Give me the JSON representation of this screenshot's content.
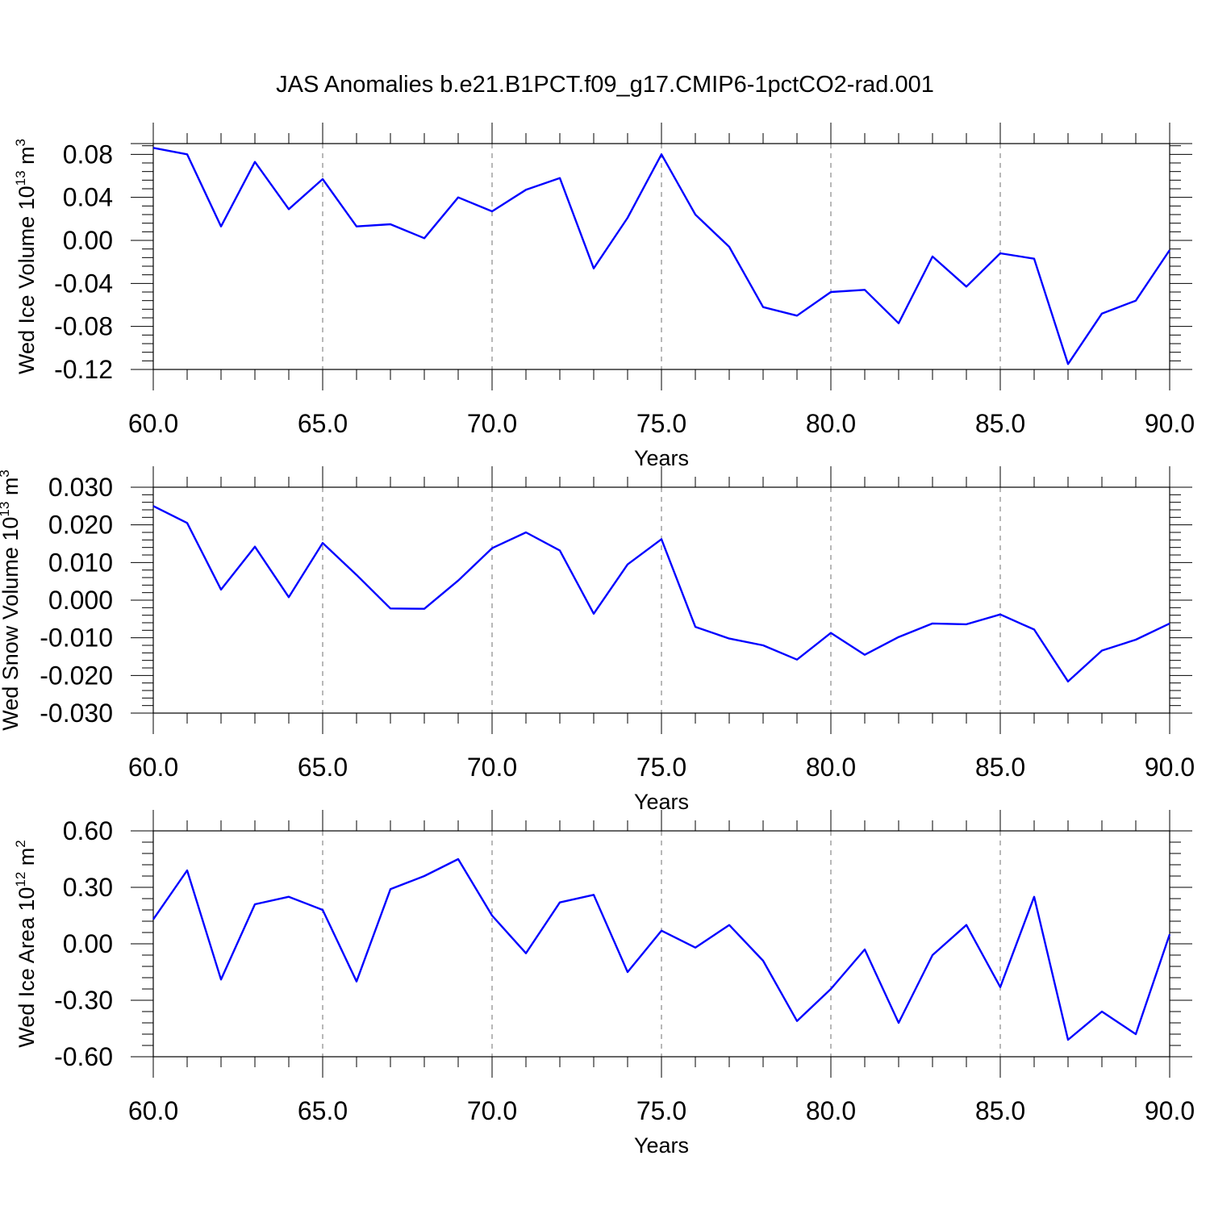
{
  "title": "JAS Anomalies b.e21.B1PCT.f09_g17.CMIP6-1pctCO2-rad.001",
  "colors": {
    "line": "#0000ff",
    "axis": "#000000",
    "grid": "#888888"
  },
  "chart_data": [
    {
      "type": "line",
      "ylabel": {
        "prefix": "Wed Ice Volume 10",
        "exp": "13",
        "unit": " m",
        "unit_exp": "3"
      },
      "xlabel": "Years",
      "xlim": [
        60,
        90
      ],
      "ylim": [
        -0.12,
        0.09
      ],
      "x_ticks": [
        "60.0",
        "65.0",
        "70.0",
        "75.0",
        "80.0",
        "85.0",
        "90.0"
      ],
      "y_ticks": [
        "0.08",
        "0.04",
        "0.00",
        "-0.04",
        "-0.08",
        "-0.12"
      ],
      "y_tick_values": [
        0.08,
        0.04,
        0.0,
        -0.04,
        -0.08,
        -0.12
      ],
      "grid": "vertical dashed at major x ticks",
      "series": [
        {
          "x": [
            60,
            61,
            62,
            63,
            64,
            65,
            66,
            67,
            68,
            69,
            70,
            71,
            72,
            73,
            74,
            75,
            76,
            77,
            78,
            79,
            80,
            81,
            82,
            83,
            84,
            85,
            86,
            87,
            88,
            89,
            90
          ],
          "values": [
            0.086,
            0.08,
            0.013,
            0.073,
            0.029,
            0.057,
            0.013,
            0.015,
            0.002,
            0.04,
            0.027,
            0.047,
            0.058,
            -0.026,
            0.021,
            0.08,
            0.024,
            -0.006,
            -0.062,
            -0.07,
            -0.048,
            -0.046,
            -0.077,
            -0.015,
            -0.043,
            -0.012,
            -0.017,
            -0.115,
            -0.068,
            -0.056,
            -0.009
          ]
        }
      ]
    },
    {
      "type": "line",
      "ylabel": {
        "prefix": "Wed Snow Volume 10",
        "exp": "13",
        "unit": " m",
        "unit_exp": "3"
      },
      "xlabel": "Years",
      "xlim": [
        60,
        90
      ],
      "ylim": [
        -0.03,
        0.03
      ],
      "x_ticks": [
        "60.0",
        "65.0",
        "70.0",
        "75.0",
        "80.0",
        "85.0",
        "90.0"
      ],
      "y_ticks": [
        "0.030",
        "0.020",
        "0.010",
        "0.000",
        "-0.010",
        "-0.020",
        "-0.030"
      ],
      "y_tick_values": [
        0.03,
        0.02,
        0.01,
        0.0,
        -0.01,
        -0.02,
        -0.03
      ],
      "grid": "vertical dashed at major x ticks",
      "series": [
        {
          "x": [
            60,
            61,
            62,
            63,
            64,
            65,
            66,
            67,
            68,
            69,
            70,
            71,
            72,
            73,
            74,
            75,
            76,
            77,
            78,
            79,
            80,
            81,
            82,
            83,
            84,
            85,
            86,
            87,
            88,
            89,
            90
          ],
          "values": [
            0.025,
            0.0205,
            0.0028,
            0.0142,
            0.0008,
            0.0152,
            0.0067,
            -0.0022,
            -0.0023,
            0.0052,
            0.0138,
            0.018,
            0.0132,
            -0.0036,
            0.0095,
            0.0162,
            -0.0071,
            -0.0102,
            -0.012,
            -0.0158,
            -0.0087,
            -0.0145,
            -0.0098,
            -0.0062,
            -0.0064,
            -0.0038,
            -0.0078,
            -0.0216,
            -0.0134,
            -0.0105,
            -0.0062
          ]
        }
      ]
    },
    {
      "type": "line",
      "ylabel": {
        "prefix": "Wed Ice Area 10",
        "exp": "12",
        "unit": " m",
        "unit_exp": "2"
      },
      "xlabel": "Years",
      "xlim": [
        60,
        90
      ],
      "ylim": [
        -0.6,
        0.6
      ],
      "x_ticks": [
        "60.0",
        "65.0",
        "70.0",
        "75.0",
        "80.0",
        "85.0",
        "90.0"
      ],
      "y_ticks": [
        "0.60",
        "0.30",
        "0.00",
        "-0.30",
        "-0.60"
      ],
      "y_tick_values": [
        0.6,
        0.3,
        0.0,
        -0.3,
        -0.6
      ],
      "grid": "vertical dashed at major x ticks",
      "series": [
        {
          "x": [
            60,
            61,
            62,
            63,
            64,
            65,
            66,
            67,
            68,
            69,
            70,
            71,
            72,
            73,
            74,
            75,
            76,
            77,
            78,
            79,
            80,
            81,
            82,
            83,
            84,
            85,
            86,
            87,
            88,
            89,
            90
          ],
          "values": [
            0.13,
            0.39,
            -0.19,
            0.21,
            0.25,
            0.18,
            -0.2,
            0.29,
            0.36,
            0.45,
            0.15,
            -0.05,
            0.22,
            0.26,
            -0.15,
            0.07,
            -0.02,
            0.1,
            -0.09,
            -0.41,
            -0.24,
            -0.03,
            -0.42,
            -0.06,
            0.1,
            -0.23,
            0.25,
            -0.51,
            -0.36,
            -0.48,
            0.05
          ]
        }
      ]
    }
  ]
}
